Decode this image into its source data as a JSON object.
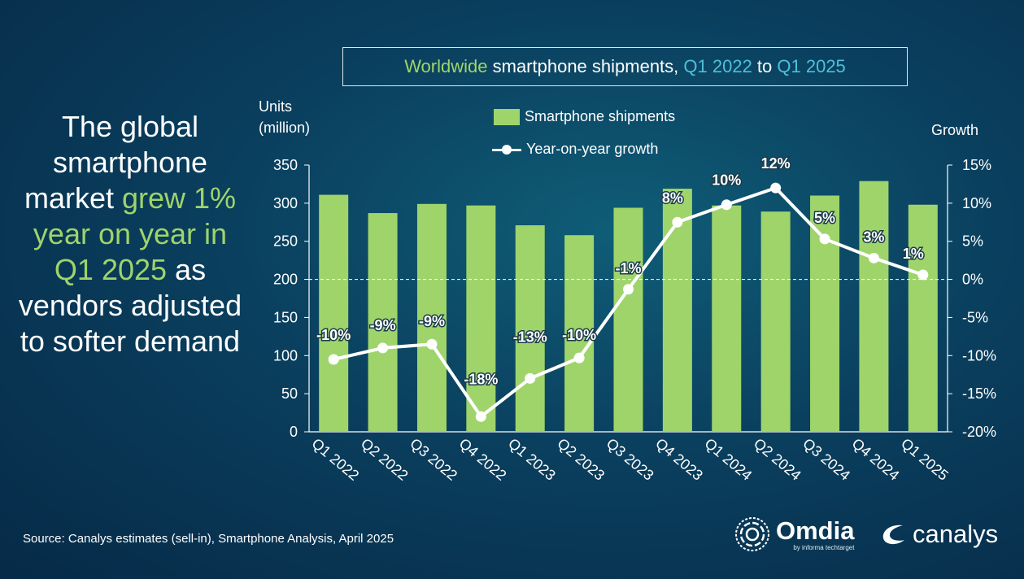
{
  "title": {
    "part1": "Worldwide",
    "part2": " smartphone shipments, ",
    "part3": "Q1 2022",
    "part4": " to ",
    "part5": "Q1 2025"
  },
  "headline": {
    "part1": "The global smartphone market ",
    "part2": "grew 1% year on year in Q1 2025",
    "part3": " as vendors adjusted to softer demand"
  },
  "axis_left_title_line1": "Units",
  "axis_left_title_line2": "(million)",
  "axis_right_title": "Growth",
  "legend": {
    "bars": "Smartphone shipments",
    "line": "Year-on-year growth"
  },
  "source": "Source: Canalys estimates (sell-in), Smartphone Analysis, April 2025",
  "logos": {
    "omdia": "Omdia",
    "omdia_tag": "by informa techtarget",
    "canalys": "canalys"
  },
  "colors": {
    "bar": "#9fd46b",
    "line": "#ffffff",
    "highlight_green": "#9fd46b",
    "highlight_blue": "#4fc0d9",
    "background": "#0a3f5e"
  },
  "chart_data": {
    "type": "bar",
    "categories": [
      "Q1 2022",
      "Q2 2022",
      "Q3 2022",
      "Q4 2022",
      "Q1 2023",
      "Q2 2023",
      "Q3 2023",
      "Q4 2023",
      "Q1 2024",
      "Q2 2024",
      "Q3 2024",
      "Q4 2024",
      "Q1 2025"
    ],
    "series": [
      {
        "name": "Smartphone shipments",
        "type": "bar",
        "axis": "left",
        "values": [
          311,
          287,
          299,
          297,
          271,
          258,
          294,
          319,
          297,
          289,
          310,
          329,
          298
        ]
      },
      {
        "name": "Year-on-year growth",
        "type": "line",
        "axis": "right",
        "values": [
          -10.5,
          -9.0,
          -8.5,
          -18.0,
          -13.0,
          -10.3,
          -1.3,
          7.5,
          9.8,
          12.0,
          5.3,
          2.8,
          0.6
        ],
        "labels": [
          "-10%",
          "-9%",
          "-9%",
          "-18%",
          "-13%",
          "-10%",
          "-1%",
          "8%",
          "10%",
          "12%",
          "5%",
          "3%",
          "1%"
        ]
      }
    ],
    "ylim": [
      0,
      350
    ],
    "yticks": [
      "0",
      "50",
      "100",
      "150",
      "200",
      "250",
      "300",
      "350"
    ],
    "y2lim": [
      -20,
      15
    ],
    "y2ticks": [
      "-20%",
      "-15%",
      "-10%",
      "-5%",
      "0%",
      "5%",
      "10%",
      "15%"
    ],
    "reference_line": "0%",
    "grid": false,
    "legend_position": "top"
  }
}
